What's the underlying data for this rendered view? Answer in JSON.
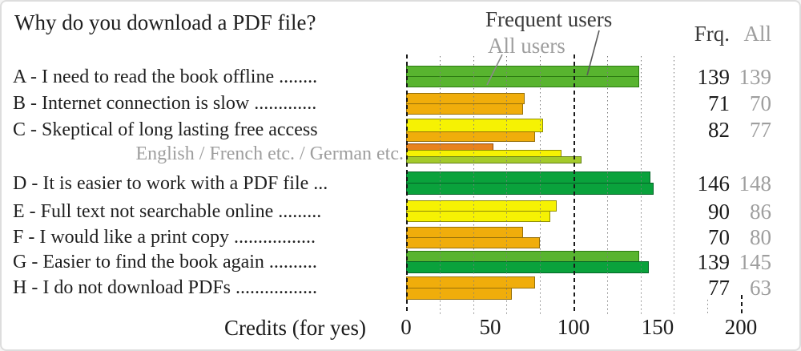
{
  "title": "Why do you download a PDF file?",
  "legend": {
    "frequent": "Frequent users",
    "all": "All users"
  },
  "columns": {
    "frq": "Frq.",
    "all": "All"
  },
  "colors": {
    "green": "#58b42f",
    "dark_green": "#0aa23c",
    "yellow": "#f6f203",
    "amber": "#f0ad0b",
    "dark_orange": "#e8821e",
    "yellow_green": "#a4ca2b",
    "text_dark": "#2e2e2e",
    "text_gray": "#9e9e9e"
  },
  "bar_borders": {
    "green": "#2c7a12",
    "dark_green": "#046327",
    "yellow": "#8f8c06",
    "amber": "#96700a",
    "dark_orange": "#8f4e0c",
    "yellow_green": "#647f17"
  },
  "chart_data": {
    "type": "bar",
    "orientation": "horizontal",
    "title": "Why do you download a PDF file?",
    "xlabel": "Credits (for yes)",
    "xlim": [
      0,
      200
    ],
    "xticks": [
      0,
      50,
      100,
      150,
      200
    ],
    "gridlines_every": 20,
    "reference_lines": [
      0,
      100,
      200
    ],
    "series_names": [
      "Frequent users",
      "All users"
    ],
    "rows": [
      {
        "key": "A",
        "label": "A - I need to read the book offline ........",
        "frequent": 139,
        "all": 139,
        "frequent_color": "green",
        "all_color": "green"
      },
      {
        "key": "B",
        "label": "B - Internet connection is slow .............",
        "frequent": 71,
        "all": 70,
        "frequent_color": "amber",
        "all_color": "amber"
      },
      {
        "key": "C",
        "label": "C - Skeptical of long lasting free access",
        "frequent": 82,
        "all": 77,
        "frequent_color": "yellow",
        "all_color": "amber"
      },
      {
        "key": "D",
        "label": "D - It is easier to work with a PDF file ...",
        "frequent": 146,
        "all": 148,
        "frequent_color": "dark_green",
        "all_color": "dark_green"
      },
      {
        "key": "E",
        "label": "E - Full text not searchable online .........",
        "frequent": 90,
        "all": 86,
        "frequent_color": "yellow",
        "all_color": "yellow"
      },
      {
        "key": "F",
        "label": "F - I would like a print copy .................",
        "frequent": 70,
        "all": 80,
        "frequent_color": "amber",
        "all_color": "amber"
      },
      {
        "key": "G",
        "label": "G - Easier to find the book again ..........",
        "frequent": 139,
        "all": 145,
        "frequent_color": "green",
        "all_color": "dark_green"
      },
      {
        "key": "H",
        "label": "H - I do not download PDFs .................",
        "frequent": 77,
        "all": 63,
        "frequent_color": "amber",
        "all_color": "amber"
      }
    ],
    "language_breakdown": {
      "label": "English / French etc. / German etc.",
      "bars": [
        {
          "name": "English",
          "value": 52,
          "color": "dark_orange"
        },
        {
          "name": "French etc.",
          "value": 93,
          "color": "yellow"
        },
        {
          "name": "German etc.",
          "value": 105,
          "color": "yellow_green"
        }
      ]
    }
  }
}
